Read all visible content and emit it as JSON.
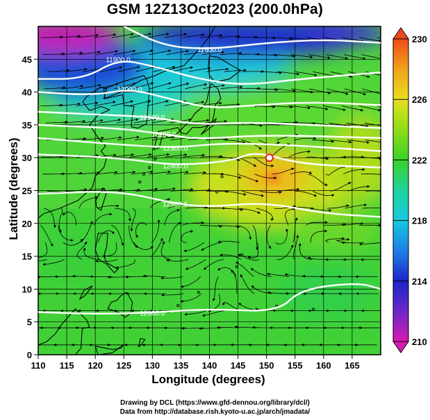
{
  "title": "GSM 12Z13Oct2023 (200.0hPa)",
  "x_axis": {
    "label": "Longitude (degrees)",
    "ticks": [
      110,
      115,
      120,
      125,
      130,
      135,
      140,
      145,
      150,
      155,
      160,
      165
    ],
    "range": [
      110,
      170
    ]
  },
  "y_axis": {
    "label": "Latitude  (degrees)",
    "ticks": [
      0,
      5,
      10,
      15,
      20,
      25,
      30,
      35,
      40,
      45
    ],
    "range": [
      0,
      50
    ]
  },
  "colorbar": {
    "ticks": [
      210,
      214,
      218,
      222,
      226,
      230
    ],
    "range": [
      210,
      230
    ],
    "colors": [
      "#d81bb0",
      "#6d28c8",
      "#1c25c9",
      "#1f7fe6",
      "#16c9e0",
      "#1fd39a",
      "#39d22a",
      "#8fdc19",
      "#e6e01a",
      "#f2a21a",
      "#ee4b1c"
    ]
  },
  "contours": [
    {
      "label": "11800.0"
    },
    {
      "label": "11900.0"
    },
    {
      "label": "12000.0"
    },
    {
      "label": "12100.0"
    },
    {
      "label": "12200.0"
    },
    {
      "label": "12300.0"
    },
    {
      "label": "12400.0"
    },
    {
      "label": "12500.0"
    },
    {
      "label": "12600.0"
    }
  ],
  "credits": {
    "line1": "Drawing by DCL (https://www.gfd-dennou.org/library/dcl/)",
    "line2": "Data from http://database.rish.kyoto-u.ac.jp/arch/jmadata/"
  }
}
